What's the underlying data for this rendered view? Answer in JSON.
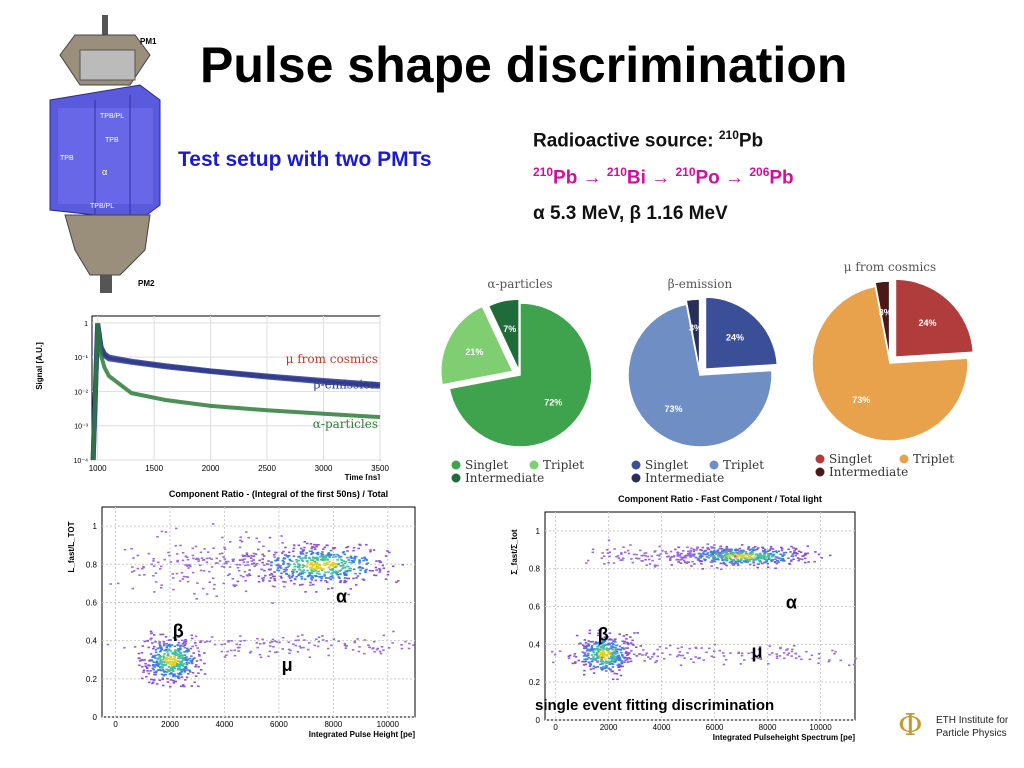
{
  "slide": {
    "title": "Pulse shape discrimination",
    "subtitle": "Test setup with two PMTs",
    "source_label": "Radioactive source: ",
    "source_mass": "210",
    "source_el": "Pb",
    "chain": [
      {
        "mass": "210",
        "el": "Pb"
      },
      {
        "mass": "210",
        "el": "Bi"
      },
      {
        "mass": "210",
        "el": "Po"
      },
      {
        "mass": "206",
        "el": "Pb"
      }
    ],
    "chain_arrow": " → ",
    "energy": "α 5.3 MeV, β 1.16 MeV",
    "logo_line1": "ETH Institute for",
    "logo_line2": "Particle Physics",
    "logo_symbol": "Φ"
  },
  "detector": {
    "labels": [
      "PM1",
      "TPB/PL",
      "TPB",
      "TPB",
      "α",
      "TPB/PL",
      "PM2"
    ]
  },
  "colors": {
    "green": "#3fa34d",
    "lightgreen": "#7fcf72",
    "darkgreen": "#1f6b3a",
    "blue": "#6f8fc4",
    "navy": "#3b4f99",
    "darknavy": "#2a2f5a",
    "orange": "#e8a24c",
    "red": "#b03c3c",
    "maroon": "#4a1a1a",
    "pink": "#d0109a",
    "titleblue": "#1a1ad0"
  },
  "chart_data": [
    {
      "type": "line",
      "ylabel": "Signal [A.U.]",
      "xlabel": "Time [ns]",
      "x_ticks": [
        "1000",
        "1500",
        "2000",
        "2500",
        "3000",
        "3500"
      ],
      "y_ticks": [
        "10⁻⁴",
        "10⁻³",
        "10⁻²",
        "10⁻¹",
        "1"
      ],
      "xlim": [
        950,
        3500
      ],
      "ylim_log": [
        -4,
        0.2
      ],
      "log_y": true,
      "series": [
        {
          "name": "μ from cosmics",
          "color": "#2b3a8f",
          "x": [
            960,
            1000,
            1030,
            1060,
            1100,
            1300,
            1600,
            2000,
            2500,
            3000,
            3500
          ],
          "y": [
            -4,
            -0.02,
            -0.7,
            -0.9,
            -1.0,
            -1.12,
            -1.25,
            -1.4,
            -1.55,
            -1.68,
            -1.8
          ]
        },
        {
          "name": "β-emission",
          "color": "#2b3a8f",
          "x": [
            960,
            1000,
            1030,
            1060,
            1100,
            1300,
            1600,
            2000,
            2500,
            3000,
            3500
          ],
          "y": [
            -4,
            -0.03,
            -0.75,
            -0.95,
            -1.05,
            -1.15,
            -1.28,
            -1.42,
            -1.58,
            -1.72,
            -1.85
          ]
        },
        {
          "name": "α-particles",
          "color": "#2e7d3a",
          "x": [
            960,
            1000,
            1030,
            1060,
            1100,
            1300,
            1600,
            2000,
            2500,
            3000,
            3500
          ],
          "y": [
            -4,
            -0.01,
            -0.95,
            -1.3,
            -1.55,
            -2.05,
            -2.25,
            -2.42,
            -2.55,
            -2.65,
            -2.75
          ]
        }
      ]
    },
    {
      "type": "pie",
      "title": "α-particles",
      "slices": [
        {
          "label": "Singlet",
          "value": 72,
          "text": "72%",
          "color": "#3fa34d"
        },
        {
          "label": "Triplet",
          "value": 21,
          "text": "21%",
          "color": "#7fcf72"
        },
        {
          "label": "Intermediate",
          "value": 7,
          "text": "7%",
          "color": "#1f6b3a"
        }
      ],
      "legend": [
        "Singlet",
        "Triplet",
        "Intermediate"
      ]
    },
    {
      "type": "pie",
      "title": "β-emission",
      "slices": [
        {
          "label": "Singlet",
          "value": 24,
          "text": "24%",
          "color": "#3b4f99"
        },
        {
          "label": "Triplet",
          "value": 73,
          "text": "73%",
          "color": "#6f8fc4"
        },
        {
          "label": "Intermediate",
          "value": 3,
          "text": "3%",
          "color": "#2a2f5a"
        }
      ],
      "legend": [
        "Singlet",
        "Triplet",
        "Intermediate"
      ]
    },
    {
      "type": "pie",
      "title": "μ from cosmics",
      "slices": [
        {
          "label": "Singlet",
          "value": 24,
          "text": "24%",
          "color": "#b03c3c"
        },
        {
          "label": "Triplet",
          "value": 73,
          "text": "73%",
          "color": "#e8a24c"
        },
        {
          "label": "Intermediate",
          "value": 3,
          "text": "3%",
          "color": "#4a1a1a"
        }
      ],
      "legend": [
        "Singlet",
        "Triplet",
        "Intermediate"
      ]
    },
    {
      "type": "heatmap",
      "title": "Component Ratio - (Integral of  the  first 50ns) / Total",
      "xlabel": "Integrated Pulse Height [pe]",
      "ylabel": "L_fast/L_TOT",
      "x_ticks": [
        "0",
        "2000",
        "4000",
        "6000",
        "8000",
        "10000"
      ],
      "y_ticks": [
        "0",
        "0.2",
        "0.4",
        "0.6",
        "0.8",
        "1"
      ],
      "xlim": [
        -500,
        11000
      ],
      "ylim": [
        0,
        1.1
      ],
      "labels": [
        {
          "text": "α",
          "x": 8300,
          "y": 0.6
        },
        {
          "text": "β",
          "x": 2300,
          "y": 0.42
        },
        {
          "text": "μ",
          "x": 6300,
          "y": 0.24
        }
      ],
      "clusters": [
        {
          "x": 7500,
          "y": 0.8,
          "sx": 1200,
          "sy": 0.05,
          "n": 500
        },
        {
          "x": 2000,
          "y": 0.3,
          "sx": 500,
          "sy": 0.06,
          "n": 400
        },
        {
          "x": 3500,
          "y": 0.8,
          "sx": 2000,
          "sy": 0.07,
          "n": 200
        },
        {
          "x": 6500,
          "y": 0.38,
          "sx": 3000,
          "sy": 0.03,
          "n": 150
        }
      ]
    },
    {
      "type": "heatmap",
      "title": "Component Ratio - Fast Component / Total light",
      "xlabel": "Integrated Pulseheight Spectrum [pe]",
      "ylabel": "Σ_fast/Σ_tot",
      "x_ticks": [
        "0",
        "2000",
        "4000",
        "6000",
        "8000",
        "10000"
      ],
      "y_ticks": [
        "0",
        "0.2",
        "0.4",
        "0.6",
        "0.8",
        "1"
      ],
      "xlim": [
        -400,
        11300
      ],
      "ylim": [
        0,
        1.1
      ],
      "labels": [
        {
          "text": "α",
          "x": 8900,
          "y": 0.59
        },
        {
          "text": "β",
          "x": 1800,
          "y": 0.42
        },
        {
          "text": "μ",
          "x": 7600,
          "y": 0.33
        }
      ],
      "annotation": "single event fitting discrimination",
      "clusters": [
        {
          "x": 7000,
          "y": 0.87,
          "sx": 1200,
          "sy": 0.025,
          "n": 450
        },
        {
          "x": 1800,
          "y": 0.35,
          "sx": 500,
          "sy": 0.05,
          "n": 350
        },
        {
          "x": 4500,
          "y": 0.87,
          "sx": 1800,
          "sy": 0.03,
          "n": 150
        },
        {
          "x": 5500,
          "y": 0.35,
          "sx": 3000,
          "sy": 0.025,
          "n": 150
        }
      ]
    }
  ]
}
